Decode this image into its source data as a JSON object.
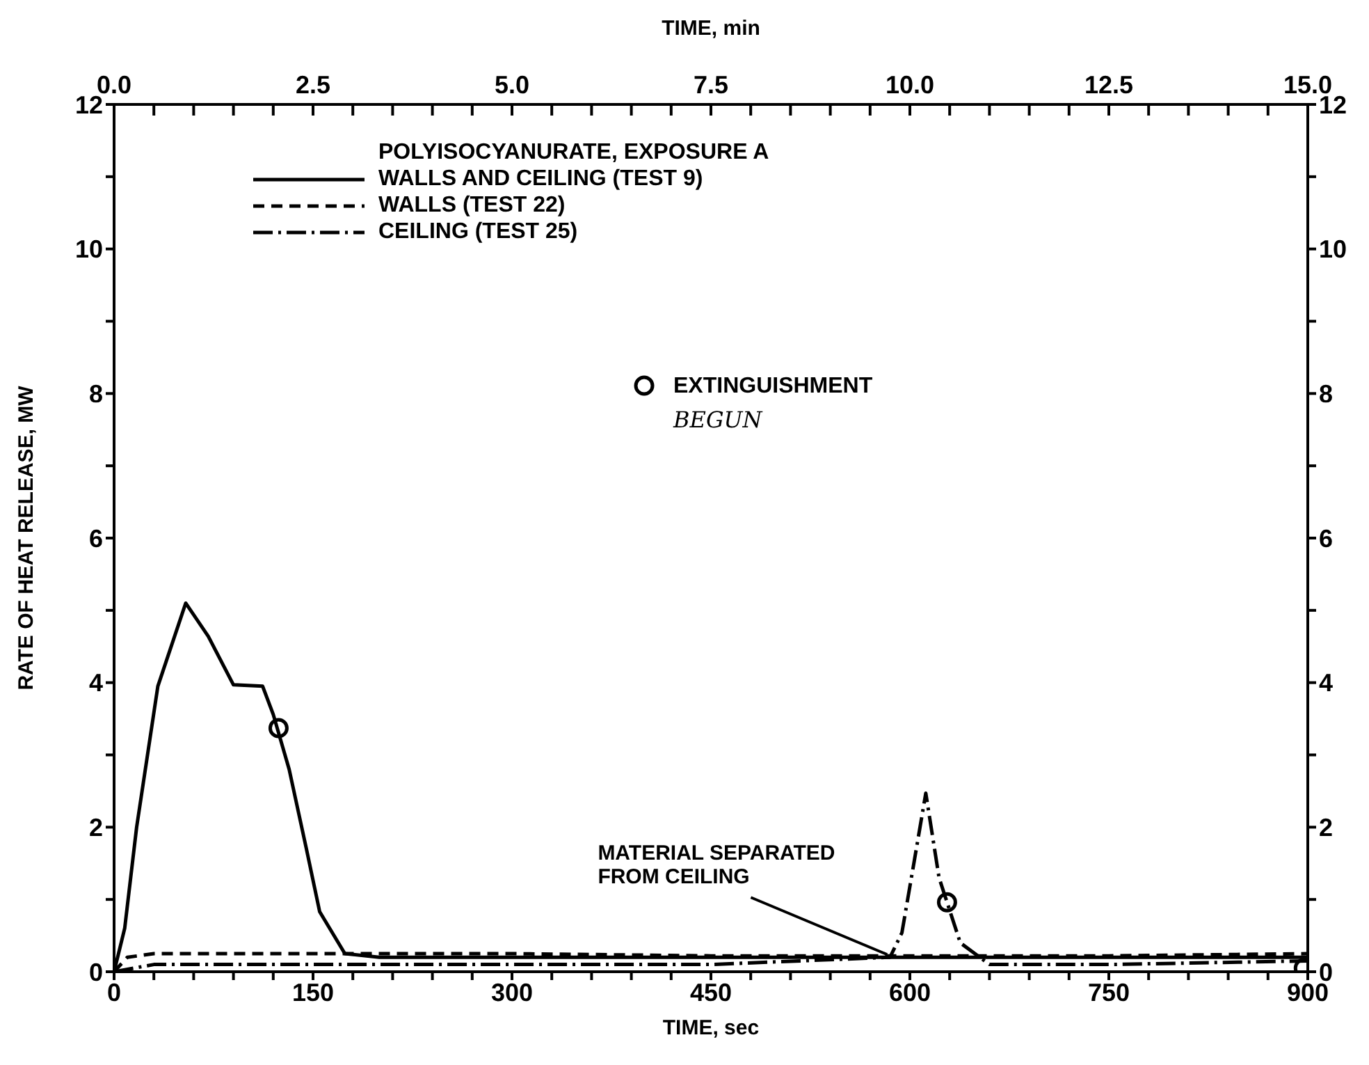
{
  "chart_data": {
    "type": "line",
    "xlabel": "TIME, sec",
    "ylabel": "RATE OF HEAT RELEASE, MW",
    "x2label": "TIME, min",
    "legend_title": "POLYISOCYANURATE, EXPOSURE A",
    "legend": "top",
    "grid": false,
    "xlim": [
      0,
      900
    ],
    "xticks": [
      0,
      {
        "value": 30,
        "label": null
      },
      {
        "value": 60,
        "label": null
      },
      {
        "value": 90,
        "label": null
      },
      {
        "value": 120,
        "label": null
      },
      150,
      {
        "value": 180,
        "label": null
      },
      {
        "value": 210,
        "label": null
      },
      {
        "value": 240,
        "label": null
      },
      {
        "value": 270,
        "label": null
      },
      300,
      {
        "value": 330,
        "label": null
      },
      {
        "value": 360,
        "label": null
      },
      {
        "value": 390,
        "label": null
      },
      {
        "value": 420,
        "label": null
      },
      450,
      {
        "value": 480,
        "label": null
      },
      {
        "value": 510,
        "label": null
      },
      {
        "value": 540,
        "label": null
      },
      {
        "value": 570,
        "label": null
      },
      600,
      {
        "value": 630,
        "label": null
      },
      {
        "value": 660,
        "label": null
      },
      {
        "value": 690,
        "label": null
      },
      {
        "value": 720,
        "label": null
      },
      750,
      {
        "value": 780,
        "label": null
      },
      {
        "value": 810,
        "label": null
      },
      {
        "value": 840,
        "label": null
      },
      {
        "value": 870,
        "label": null
      },
      900
    ],
    "x2lim": [
      0,
      15
    ],
    "x2ticks": [
      {
        "value": 0,
        "label": "0.0"
      },
      {
        "value": 0.5,
        "label": null
      },
      {
        "value": 1,
        "label": null
      },
      {
        "value": 1.5,
        "label": null
      },
      {
        "value": 2,
        "label": null
      },
      {
        "value": 2.5,
        "label": "2.5"
      },
      {
        "value": 3,
        "label": null
      },
      {
        "value": 3.5,
        "label": null
      },
      {
        "value": 4,
        "label": null
      },
      {
        "value": 4.5,
        "label": null
      },
      {
        "value": 5,
        "label": "5.0"
      },
      {
        "value": 5.5,
        "label": null
      },
      {
        "value": 6,
        "label": null
      },
      {
        "value": 6.5,
        "label": null
      },
      {
        "value": 7,
        "label": null
      },
      {
        "value": 7.5,
        "label": "7.5"
      },
      {
        "value": 8,
        "label": null
      },
      {
        "value": 8.5,
        "label": null
      },
      {
        "value": 9,
        "label": null
      },
      {
        "value": 9.5,
        "label": null
      },
      {
        "value": 10,
        "label": "10.0"
      },
      {
        "value": 10.5,
        "label": null
      },
      {
        "value": 11,
        "label": null
      },
      {
        "value": 11.5,
        "label": null
      },
      {
        "value": 12,
        "label": null
      },
      {
        "value": 12.5,
        "label": "12.5"
      },
      {
        "value": 13,
        "label": null
      },
      {
        "value": 13.5,
        "label": null
      },
      {
        "value": 14,
        "label": null
      },
      {
        "value": 14.5,
        "label": null
      },
      {
        "value": 15,
        "label": "15.0"
      }
    ],
    "ylim": [
      0,
      12
    ],
    "yticks": [
      0,
      {
        "value": 1,
        "label": null
      },
      2,
      {
        "value": 3,
        "label": null
      },
      4,
      {
        "value": 5,
        "label": null
      },
      6,
      {
        "value": 7,
        "label": null
      },
      8,
      {
        "value": 9,
        "label": null
      },
      10,
      {
        "value": 11,
        "label": null
      },
      12
    ],
    "y2lim": [
      0,
      12
    ],
    "y2ticks": [
      0,
      {
        "value": 1,
        "label": null
      },
      2,
      {
        "value": 3,
        "label": null
      },
      4,
      {
        "value": 5,
        "label": null
      },
      6,
      {
        "value": 7,
        "label": null
      },
      8,
      {
        "value": 9,
        "label": null
      },
      10,
      {
        "value": 11,
        "label": null
      },
      12
    ],
    "series": [
      {
        "name": "WALLS AND CEILING (TEST 9)",
        "color": "#000000",
        "line_style": "solid",
        "x": [
          0,
          8,
          17,
          33,
          54,
          71,
          90,
          112,
          120,
          132,
          145,
          155,
          174,
          200,
          300,
          450,
          600,
          750,
          900
        ],
        "values": [
          0,
          0.6,
          2.0,
          3.95,
          5.1,
          4.64,
          3.97,
          3.95,
          3.56,
          2.8,
          1.7,
          0.83,
          0.25,
          0.2,
          0.2,
          0.2,
          0.2,
          0.2,
          0.2
        ]
      },
      {
        "name": "WALLS (TEST 22)",
        "color": "#000000",
        "line_style": "dashed",
        "x": [
          0,
          10,
          30,
          150,
          300,
          450,
          600,
          750,
          900
        ],
        "values": [
          0,
          0.2,
          0.25,
          0.25,
          0.25,
          0.22,
          0.22,
          0.22,
          0.25
        ]
      },
      {
        "name": "CEILING (TEST 25)",
        "color": "#000000",
        "line_style": "dashdot",
        "x": [
          0,
          30,
          150,
          300,
          450,
          585,
          594,
          603,
          612,
          622,
          638,
          660,
          750,
          900
        ],
        "values": [
          0,
          0.1,
          0.1,
          0.1,
          0.1,
          0.2,
          0.54,
          1.5,
          2.47,
          1.3,
          0.4,
          0.1,
          0.1,
          0.15
        ]
      },
      {
        "name": "EXTINGUISHMENT",
        "type": "scatter",
        "color": "#000000",
        "marker": "circle",
        "x": [
          124,
          628,
          897
        ],
        "values": [
          3.37,
          0.96,
          0.05
        ]
      }
    ],
    "annotations": [
      {
        "text": "MATERIAL SEPARATED\nFROM CEILING",
        "x": 585,
        "y": 0.2
      },
      "BEGUN"
    ]
  }
}
